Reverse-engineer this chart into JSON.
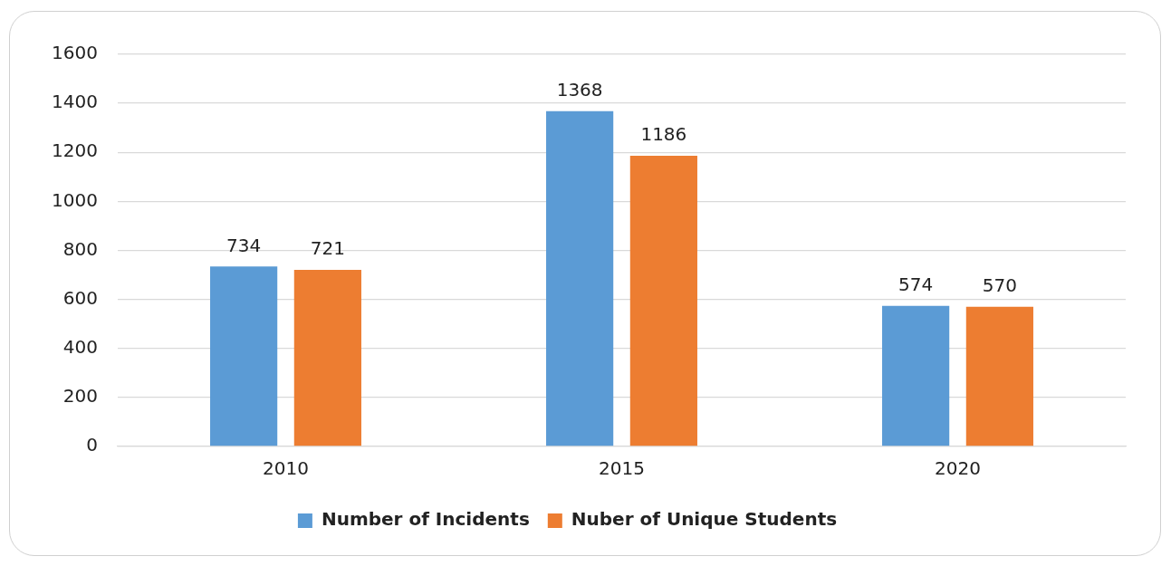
{
  "chart_data": {
    "type": "bar",
    "categories": [
      "2010",
      "2015",
      "2020"
    ],
    "series": [
      {
        "name": "Number of Incidents",
        "color": "#5b9bd5",
        "values": [
          734,
          1368,
          574
        ]
      },
      {
        "name": "Nuber of Unique Students",
        "color": "#ed7d31",
        "values": [
          721,
          1186,
          570
        ]
      }
    ],
    "ylim": [
      0,
      1600
    ],
    "yticks": [
      0,
      200,
      400,
      600,
      800,
      1000,
      1200,
      1400,
      1600
    ],
    "grid": "y",
    "legend": "bottom",
    "data_labels": true
  }
}
